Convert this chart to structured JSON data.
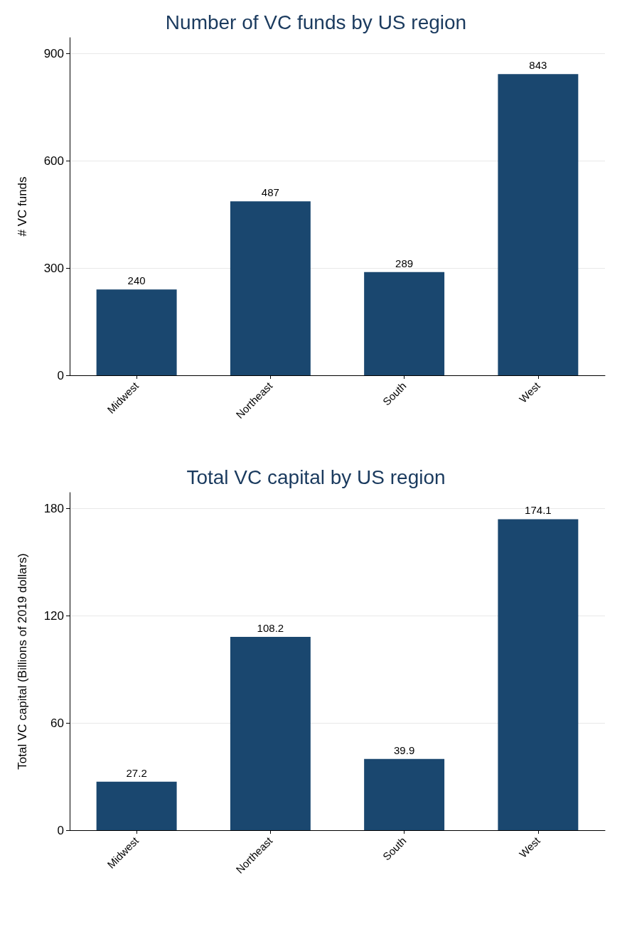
{
  "chart_data": [
    {
      "type": "bar",
      "title": "Number of VC funds by US region",
      "ylabel": "# VC funds",
      "categories": [
        "Midwest",
        "Northeast",
        "South",
        "West"
      ],
      "values": [
        240,
        487,
        289,
        843
      ],
      "color": "#1a476f",
      "ylim": [
        0,
        945
      ],
      "yticks": [
        0,
        300,
        600,
        900
      ],
      "grid": "y",
      "data_labels": true
    },
    {
      "type": "bar",
      "title": "Total VC capital by US region",
      "ylabel": "Total VC capital (Billions of 2019 dollars)",
      "categories": [
        "Midwest",
        "Northeast",
        "South",
        "West"
      ],
      "values": [
        27.2,
        108.2,
        39.9,
        174.1
      ],
      "color": "#1a476f",
      "ylim": [
        0,
        189
      ],
      "yticks": [
        0,
        60,
        120,
        180
      ],
      "grid": "y",
      "data_labels": true
    }
  ]
}
